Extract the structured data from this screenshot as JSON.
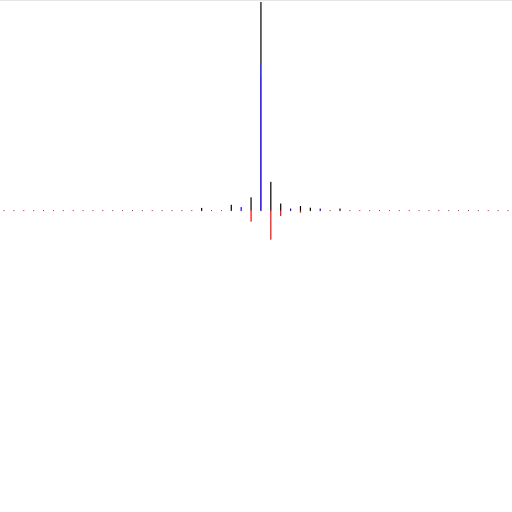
{
  "chart_data": {
    "type": "stem",
    "title": "",
    "xlabel": "",
    "ylabel": "",
    "grid": false,
    "legend": false,
    "xlim": [
      -26,
      25
    ],
    "ylim": [
      -0.39,
      1.0
    ],
    "colors": {
      "black": "#000000",
      "magenta": "#ff00ff",
      "red": "#ff0000",
      "blue": "#0000ff",
      "baseline": "#ff0000",
      "frame": "#e6e6e6"
    },
    "series": [
      {
        "color_key": "black",
        "points": [
          {
            "x": -6,
            "y": 0.013
          },
          {
            "x": -3,
            "y": 0.028
          },
          {
            "x": -1,
            "y": 0.064
          },
          {
            "x": 0,
            "y": 1.0
          },
          {
            "x": 1,
            "y": 0.138
          },
          {
            "x": 2,
            "y": 0.034
          },
          {
            "x": 4,
            "y": 0.022
          },
          {
            "x": 5,
            "y": 0.014
          },
          {
            "x": 8,
            "y": 0.01
          }
        ]
      },
      {
        "color_key": "magenta",
        "points": [
          {
            "x": 0,
            "y": 0.643
          }
        ]
      },
      {
        "color_key": "blue",
        "points": [
          {
            "x": -2,
            "y": 0.017
          },
          {
            "x": 0,
            "y": 0.7
          },
          {
            "x": 3,
            "y": 0.01
          },
          {
            "x": 6,
            "y": 0.01
          }
        ]
      },
      {
        "color_key": "red",
        "points": [
          {
            "x": -1,
            "y": -0.053
          },
          {
            "x": 1,
            "y": -0.139
          },
          {
            "x": 2,
            "y": -0.026
          },
          {
            "x": 4,
            "y": -0.01
          }
        ]
      }
    ]
  }
}
